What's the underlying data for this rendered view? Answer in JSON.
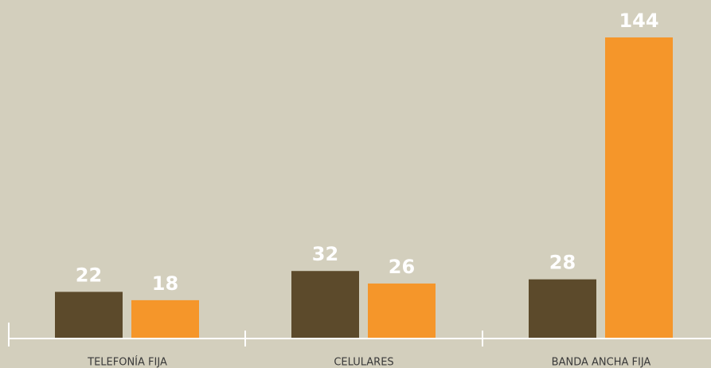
{
  "chart_data": {
    "type": "bar",
    "categories": [
      "TELEFONÍA FIJA",
      "CELULARES",
      "BANDA ANCHA FIJA"
    ],
    "series": [
      {
        "color": "#5c4a2b",
        "values": [
          22,
          32,
          28
        ]
      },
      {
        "color": "#f5962a",
        "values": [
          18,
          26,
          144
        ]
      }
    ]
  }
}
